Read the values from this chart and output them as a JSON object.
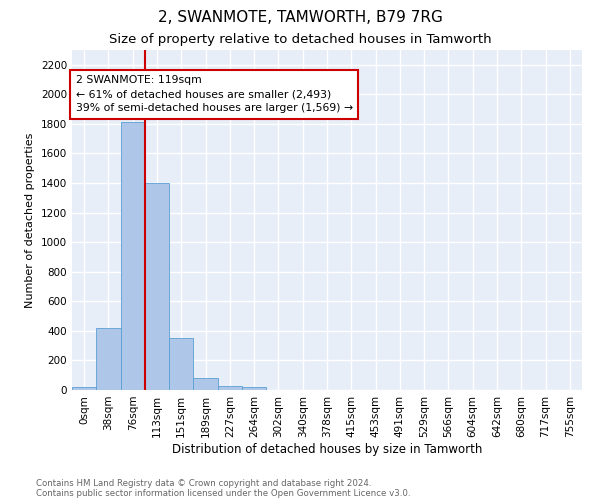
{
  "title": "2, SWANMOTE, TAMWORTH, B79 7RG",
  "subtitle": "Size of property relative to detached houses in Tamworth",
  "xlabel": "Distribution of detached houses by size in Tamworth",
  "ylabel": "Number of detached properties",
  "footnote1": "Contains HM Land Registry data © Crown copyright and database right 2024.",
  "footnote2": "Contains public sector information licensed under the Open Government Licence v3.0.",
  "bar_labels": [
    "0sqm",
    "38sqm",
    "76sqm",
    "113sqm",
    "151sqm",
    "189sqm",
    "227sqm",
    "264sqm",
    "302sqm",
    "340sqm",
    "378sqm",
    "415sqm",
    "453sqm",
    "491sqm",
    "529sqm",
    "566sqm",
    "604sqm",
    "642sqm",
    "680sqm",
    "717sqm",
    "755sqm"
  ],
  "bar_values": [
    20,
    420,
    1810,
    1400,
    350,
    80,
    30,
    20,
    0,
    0,
    0,
    0,
    0,
    0,
    0,
    0,
    0,
    0,
    0,
    0,
    0
  ],
  "bar_color": "#aec6e8",
  "bar_edge_color": "#5a9fd4",
  "vline_x": 3.0,
  "vline_color": "#cc0000",
  "annotation_text": "2 SWANMOTE: 119sqm\n← 61% of detached houses are smaller (2,493)\n39% of semi-detached houses are larger (1,569) →",
  "annotation_box_color": "#cc0000",
  "ylim": [
    0,
    2300
  ],
  "yticks": [
    0,
    200,
    400,
    600,
    800,
    1000,
    1200,
    1400,
    1600,
    1800,
    2000,
    2200
  ],
  "background_color": "#e8eef8",
  "grid_color": "#ffffff",
  "title_fontsize": 11,
  "subtitle_fontsize": 9.5,
  "tick_fontsize": 7.5,
  "ylabel_fontsize": 8,
  "xlabel_fontsize": 8.5
}
